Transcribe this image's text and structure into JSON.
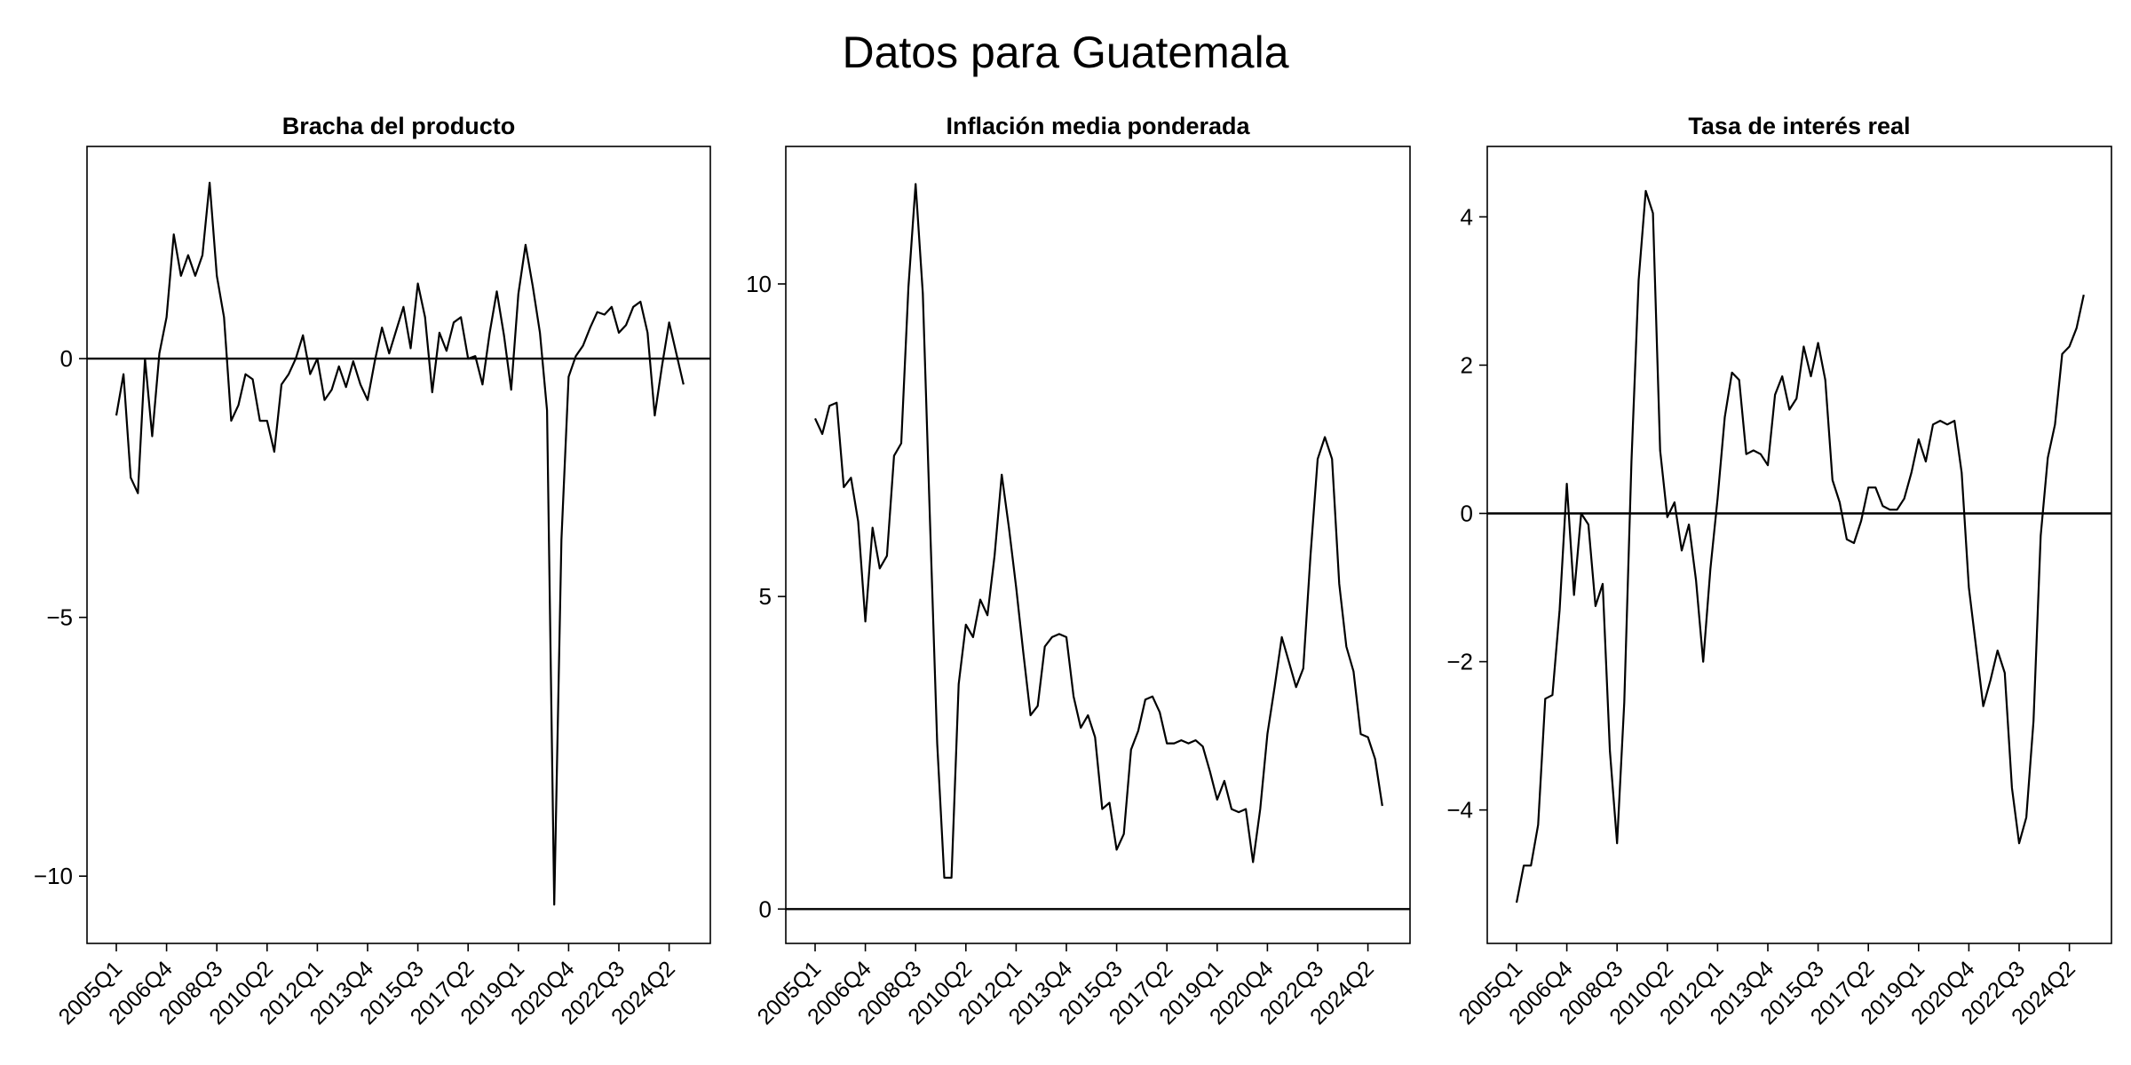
{
  "figure": {
    "title": "Datos para Guatemala"
  },
  "chart_data": [
    {
      "type": "line",
      "title": "Bracha del producto",
      "xlabel": "",
      "ylabel": "",
      "x_start": "2005Q1",
      "xtick_labels": [
        "2005Q1",
        "2006Q4",
        "2008Q3",
        "2010Q2",
        "2012Q1",
        "2013Q4",
        "2015Q3",
        "2017Q2",
        "2019Q1",
        "2020Q4",
        "2022Q3",
        "2024Q2"
      ],
      "ytick_values": [
        0,
        -5,
        -10
      ],
      "ytick_labels": [
        "0",
        "−5",
        "−10"
      ],
      "ylim": [
        -11.3,
        4.1
      ],
      "reference_line": 0,
      "grid": false,
      "series": [
        {
          "values": [
            -1.1,
            -0.3,
            -2.3,
            -2.6,
            0.0,
            -1.5,
            0.1,
            0.8,
            2.4,
            1.6,
            2.0,
            1.6,
            2.0,
            3.4,
            1.6,
            0.8,
            -1.2,
            -0.9,
            -0.3,
            -0.4,
            -1.2,
            -1.2,
            -1.8,
            -0.5,
            -0.3,
            0.0,
            0.45,
            -0.3,
            0.0,
            -0.8,
            -0.6,
            -0.15,
            -0.55,
            -0.05,
            -0.5,
            -0.8,
            -0.05,
            0.6,
            0.1,
            0.55,
            1.0,
            0.2,
            1.45,
            0.8,
            -0.65,
            0.5,
            0.15,
            0.7,
            0.8,
            0.0,
            0.05,
            -0.5,
            0.5,
            1.3,
            0.45,
            -0.6,
            1.25,
            2.2,
            1.4,
            0.5,
            -1.0,
            -10.55,
            -3.5,
            -0.35,
            0.05,
            0.25,
            0.6,
            0.9,
            0.85,
            1.0,
            0.5,
            0.65,
            1.0,
            1.1,
            0.5,
            -1.1,
            -0.15,
            0.7,
            0.1,
            -0.5
          ]
        }
      ]
    },
    {
      "type": "line",
      "title": "Inflación media ponderada",
      "xlabel": "",
      "ylabel": "",
      "x_start": "2005Q1",
      "xtick_labels": [
        "2005Q1",
        "2006Q4",
        "2008Q3",
        "2010Q2",
        "2012Q1",
        "2013Q4",
        "2015Q3",
        "2017Q2",
        "2019Q1",
        "2020Q4",
        "2022Q3",
        "2024Q2"
      ],
      "ytick_values": [
        0,
        5,
        10
      ],
      "ytick_labels": [
        "0",
        "5",
        "10"
      ],
      "ylim": [
        -0.55,
        12.2
      ],
      "reference_line": 0,
      "grid": false,
      "series": [
        {
          "values": [
            7.85,
            7.6,
            8.05,
            8.1,
            6.75,
            6.9,
            6.2,
            4.6,
            6.1,
            5.45,
            5.65,
            7.25,
            7.45,
            9.95,
            11.6,
            9.85,
            6.2,
            2.65,
            0.5,
            0.5,
            3.6,
            4.55,
            4.35,
            4.95,
            4.7,
            5.65,
            6.95,
            6.1,
            5.15,
            4.1,
            3.1,
            3.25,
            4.2,
            4.35,
            4.4,
            4.35,
            3.4,
            2.9,
            3.1,
            2.75,
            1.6,
            1.7,
            0.95,
            1.2,
            2.55,
            2.85,
            3.35,
            3.4,
            3.15,
            2.65,
            2.65,
            2.7,
            2.65,
            2.7,
            2.6,
            2.2,
            1.75,
            2.05,
            1.6,
            1.55,
            1.6,
            0.75,
            1.6,
            2.8,
            3.55,
            4.35,
            3.95,
            3.55,
            3.85,
            5.65,
            7.2,
            7.55,
            7.2,
            5.2,
            4.2,
            3.8,
            2.8,
            2.75,
            2.4,
            1.65
          ]
        }
      ]
    },
    {
      "type": "line",
      "title": "Tasa de interés real",
      "xlabel": "",
      "ylabel": "",
      "x_start": "2005Q1",
      "xtick_labels": [
        "2005Q1",
        "2006Q4",
        "2008Q3",
        "2010Q2",
        "2012Q1",
        "2013Q4",
        "2015Q3",
        "2017Q2",
        "2019Q1",
        "2020Q4",
        "2022Q3",
        "2024Q2"
      ],
      "ytick_values": [
        4,
        2,
        0,
        -2,
        -4
      ],
      "ytick_labels": [
        "4",
        "2",
        "0",
        "−2",
        "−4"
      ],
      "ylim": [
        -5.8,
        4.95
      ],
      "reference_line": 0,
      "grid": false,
      "series": [
        {
          "values": [
            -5.25,
            -4.75,
            -4.75,
            -4.2,
            -2.5,
            -2.45,
            -1.3,
            0.4,
            -1.1,
            0.0,
            -0.15,
            -1.25,
            -0.95,
            -3.2,
            -4.45,
            -2.55,
            0.7,
            3.15,
            4.35,
            4.05,
            0.85,
            -0.05,
            0.15,
            -0.5,
            -0.15,
            -0.9,
            -2.0,
            -0.75,
            0.2,
            1.3,
            1.9,
            1.8,
            0.8,
            0.85,
            0.8,
            0.65,
            1.6,
            1.85,
            1.4,
            1.55,
            2.25,
            1.85,
            2.3,
            1.8,
            0.45,
            0.15,
            -0.35,
            -0.4,
            -0.1,
            0.35,
            0.35,
            0.1,
            0.05,
            0.05,
            0.2,
            0.55,
            1.0,
            0.7,
            1.2,
            1.25,
            1.2,
            1.25,
            0.55,
            -1.0,
            -1.8,
            -2.6,
            -2.25,
            -1.85,
            -2.15,
            -3.7,
            -4.45,
            -4.1,
            -2.8,
            -0.3,
            0.75,
            1.2,
            2.15,
            2.25,
            2.5,
            2.95
          ]
        }
      ]
    }
  ]
}
